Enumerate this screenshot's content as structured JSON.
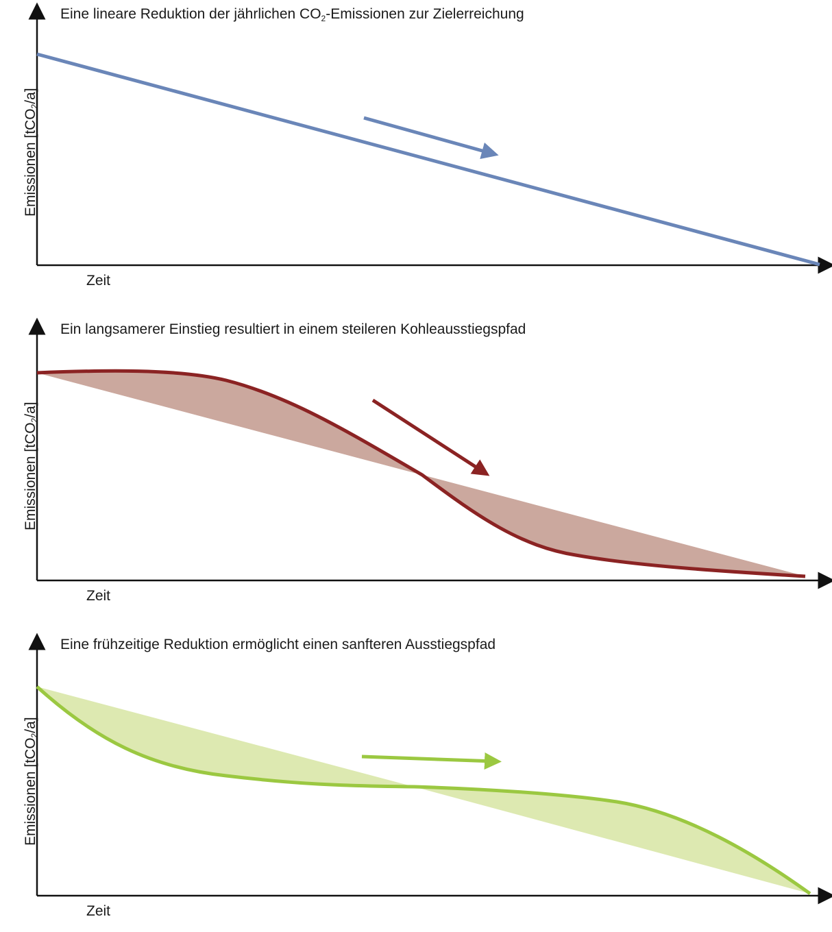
{
  "panels": [
    {
      "id": "linear",
      "title_before": "Eine lineare Reduktion der jährlichen CO",
      "title_sub": "2",
      "title_after": "-Emissionen zur Zielerreichung",
      "ylabel_before": "Emissionen [tCO",
      "ylabel_sub": "2",
      "ylabel_after": "/a]",
      "xlabel": "Zeit",
      "color": "#6a86b8"
    },
    {
      "id": "late",
      "title_before": "Ein langsamerer Einstieg resultiert in einem steileren Kohleausstiegspfad",
      "ylabel_before": "Emissionen [tCO",
      "ylabel_sub": "2",
      "ylabel_after": "/a]",
      "xlabel": "Zeit",
      "color": "#8b2323",
      "fill": "#cba89e"
    },
    {
      "id": "early",
      "title_before": "Eine frühzeitige Reduktion ermöglicht einen sanfteren Ausstiegspfad",
      "ylabel_before": "Emissionen [tCO",
      "ylabel_sub": "2",
      "ylabel_after": "/a]",
      "xlabel": "Zeit",
      "color": "#9bc841",
      "fill": "#dde9b1"
    }
  ]
}
